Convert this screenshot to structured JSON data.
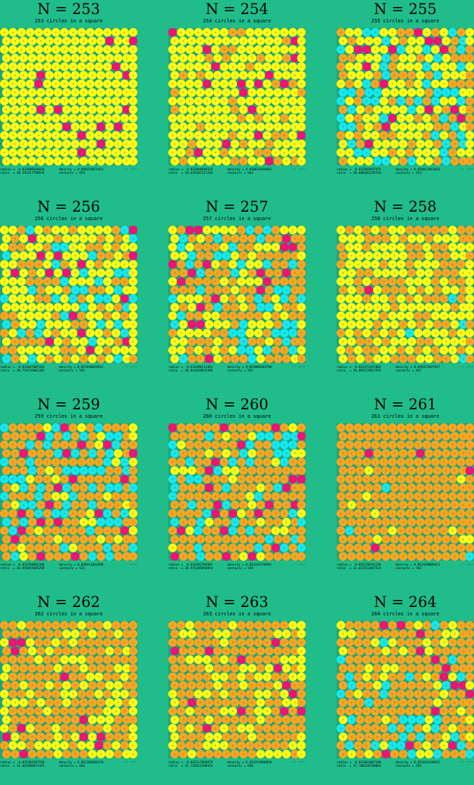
{
  "palette": {
    "background": "#20bd8a",
    "square": "#1fa57c",
    "orange": "#f5a623",
    "yellow": "#ffff14",
    "cyan": "#12e9f0",
    "magenta": "#ee1177",
    "cross": "#9a6a2a"
  },
  "credit": "© E. Specht",
  "cells": [
    {
      "n": "N = 253",
      "sub": "253 circles in a square",
      "stats_left": "radius =  0.032889936644\nratio  = 30.591417790535",
      "stats_right": "density = 0.849119072453\ncontacts = 659",
      "seed": 253,
      "mix": [
        0.93,
        0.0,
        0.07
      ]
    },
    {
      "n": "N = 254",
      "sub": "254 circles in a square",
      "stats_left": "radius =  0.032848646515\nratio  = 30.429102311339",
      "stats_right": "density = 0.850876484863\ncontacts = 684",
      "seed": 254,
      "mix": [
        0.82,
        0.0,
        0.05
      ]
    },
    {
      "n": "N = 255",
      "sub": "255 circles in a square",
      "stats_left": "radius =  0.032585697475\nratio  = 30.688381195576",
      "stats_right": "density = 0.850651961816\ncontacts = 554",
      "seed": 255,
      "mix": [
        0.45,
        0.2,
        0.05
      ]
    },
    {
      "n": "N = 256",
      "sub": "256 circles in a square",
      "stats_left": "radius =  0.032647005183\nratio  = 30.724745001283",
      "stats_right": "density = 0.851948829812\ncontacts = 545",
      "seed": 256,
      "mix": [
        0.55,
        0.15,
        0.05
      ]
    },
    {
      "n": "N = 257",
      "sub": "257 circles in a square",
      "stats_left": "radius =  0.032498112481\nratio  = 30.814439631396",
      "stats_right": "density = 0.852880381790\ncontacts = 561",
      "seed": 257,
      "mix": [
        0.3,
        0.2,
        0.07
      ]
    },
    {
      "n": "N = 258",
      "sub": "258 circles in a square",
      "stats_left": "radius =  0.032371437882\nratio  = 30.891229917555",
      "stats_right": "density = 0.849372827917\ncontacts = 647",
      "seed": 258,
      "mix": [
        0.6,
        0.02,
        0.02
      ]
    },
    {
      "n": "N = 259",
      "sub": "259 circles in a square",
      "stats_left": "radius =  0.032350962206\nratio  = 30.950455005299",
      "stats_right": "density = 0.849312042898\ncontacts = 521",
      "seed": 259,
      "mix": [
        0.12,
        0.22,
        0.08
      ]
    },
    {
      "n": "N = 260",
      "sub": "260 circles in a square",
      "stats_left": "radius =  0.032282782987\nratio  = 30.976284858953",
      "stats_right": "density = 0.851249720991\ncontacts = 529",
      "seed": 260,
      "mix": [
        0.1,
        0.18,
        0.1
      ]
    },
    {
      "n": "N = 261",
      "sub": "261 circles in a square",
      "stats_left": "radius =  0.032238762250\nratio  = 31.023513667524",
      "stats_right": "density = 0.852198089421\ncontacts = 702",
      "seed": 261,
      "mix": [
        0.04,
        0.01,
        0.02
      ]
    },
    {
      "n": "N = 262",
      "sub": "262 circles in a square",
      "stats_left": "radius =  0.032103587558\nratio  = 31.061980871425",
      "stats_right": "density = 0.852100204170\ncontacts = 666",
      "seed": 262,
      "mix": [
        0.35,
        0.0,
        0.04
      ]
    },
    {
      "n": "N = 263",
      "sub": "263 circles in a square",
      "stats_left": "radius =  0.032117848979\nratio  = 31.135621396163",
      "stats_right": "density = 0.852319968658\ncontacts = 640",
      "seed": 263,
      "mix": [
        0.3,
        0.0,
        0.05
      ]
    },
    {
      "n": "N = 264",
      "sub": "264 circles in a square",
      "stats_left": "radius =  0.032063007180\nratio  = 31.188228780864",
      "stats_right": "density = 0.852616146813\ncontacts = 555",
      "seed": 264,
      "mix": [
        0.2,
        0.15,
        0.06
      ]
    }
  ]
}
